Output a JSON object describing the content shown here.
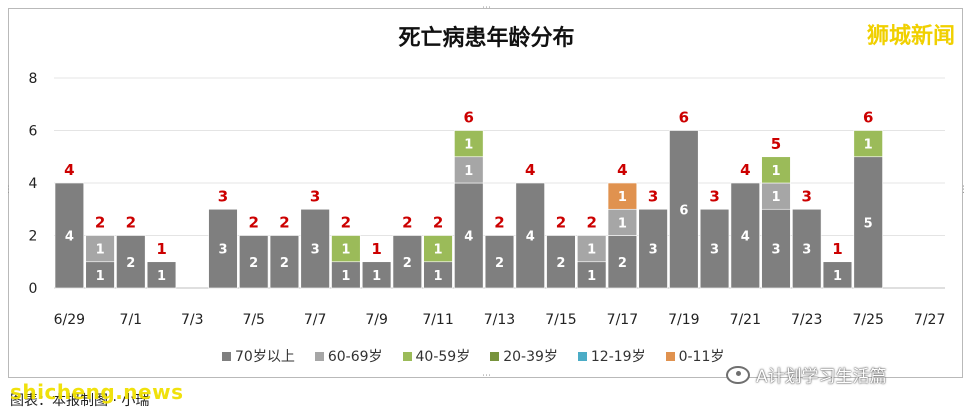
{
  "brand": {
    "name": "狮城新闻"
  },
  "account": {
    "label": "A计划学习生活篇"
  },
  "caption": {
    "text": "图表：本报制图 · 小瑞"
  },
  "watermark": {
    "text": "shicheng.news"
  },
  "chart_data": {
    "type": "bar",
    "stacked": true,
    "title": "死亡病患年龄分布",
    "xlabel": "",
    "ylabel": "",
    "ylim": [
      0,
      8
    ],
    "yticks": [
      "0",
      "2",
      "4",
      "6",
      "8"
    ],
    "grid": true,
    "legend_position": "bottom",
    "categories": [
      "6/29",
      "6/30",
      "7/1",
      "7/2",
      "7/3",
      "7/4",
      "7/5",
      "7/6",
      "7/7",
      "7/8",
      "7/9",
      "7/10",
      "7/11",
      "7/12",
      "7/13",
      "7/14",
      "7/15",
      "7/16",
      "7/17",
      "7/18",
      "7/19",
      "7/20",
      "7/21",
      "7/22",
      "7/23",
      "7/24",
      "7/25",
      "7/26",
      "7/27"
    ],
    "xtick_labels": [
      "6/29",
      "",
      "7/1",
      "",
      "7/3",
      "",
      "7/5",
      "",
      "7/7",
      "",
      "7/9",
      "",
      "7/11",
      "",
      "7/13",
      "",
      "7/15",
      "",
      "7/17",
      "",
      "7/19",
      "",
      "7/21",
      "",
      "7/23",
      "",
      "7/25",
      "",
      "7/27"
    ],
    "series": [
      {
        "name": "70岁以上",
        "color": "#7f7f7f",
        "values": [
          4,
          1,
          2,
          1,
          0,
          3,
          2,
          2,
          3,
          1,
          1,
          2,
          1,
          4,
          2,
          4,
          2,
          1,
          2,
          3,
          6,
          3,
          4,
          3,
          3,
          1,
          5,
          0,
          0
        ]
      },
      {
        "name": "60-69岁",
        "color": "#a6a6a6",
        "values": [
          0,
          1,
          0,
          0,
          0,
          0,
          0,
          0,
          0,
          0,
          0,
          0,
          0,
          1,
          0,
          0,
          0,
          1,
          1,
          0,
          0,
          0,
          0,
          1,
          0,
          0,
          0,
          0,
          0
        ]
      },
      {
        "name": "40-59岁",
        "color": "#9bbb59",
        "values": [
          0,
          0,
          0,
          0,
          0,
          0,
          0,
          0,
          0,
          1,
          0,
          0,
          1,
          1,
          0,
          0,
          0,
          0,
          0,
          0,
          0,
          0,
          0,
          1,
          0,
          0,
          1,
          0,
          0
        ]
      },
      {
        "name": "20-39岁",
        "color": "#77933c",
        "values": [
          0,
          0,
          0,
          0,
          0,
          0,
          0,
          0,
          0,
          0,
          0,
          0,
          0,
          0,
          0,
          0,
          0,
          0,
          0,
          0,
          0,
          0,
          0,
          0,
          0,
          0,
          0,
          0,
          0
        ]
      },
      {
        "name": "12-19岁",
        "color": "#4bacc6",
        "values": [
          0,
          0,
          0,
          0,
          0,
          0,
          0,
          0,
          0,
          0,
          0,
          0,
          0,
          0,
          0,
          0,
          0,
          0,
          0,
          0,
          0,
          0,
          0,
          0,
          0,
          0,
          0,
          0,
          0
        ]
      },
      {
        "name": "0-11岁",
        "color": "#e0924f",
        "values": [
          0,
          0,
          0,
          0,
          0,
          0,
          0,
          0,
          0,
          0,
          0,
          0,
          0,
          0,
          0,
          0,
          0,
          0,
          1,
          0,
          0,
          0,
          0,
          0,
          0,
          0,
          0,
          0,
          0
        ]
      }
    ],
    "totals": [
      4,
      2,
      2,
      1,
      0,
      3,
      2,
      2,
      3,
      2,
      1,
      2,
      2,
      6,
      2,
      4,
      2,
      2,
      4,
      3,
      6,
      3,
      4,
      5,
      3,
      1,
      6,
      0,
      0
    ],
    "total_label_color": "#cc0000"
  }
}
